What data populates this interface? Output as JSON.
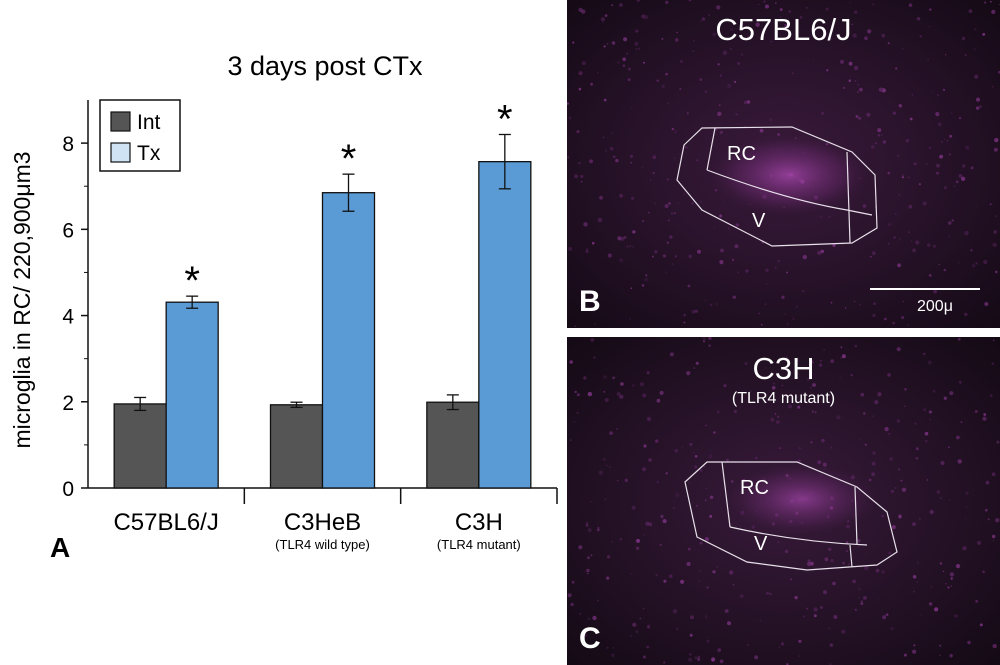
{
  "chart_data": {
    "type": "bar",
    "title": "3 days post CTx",
    "ylabel": "microglia in RC/ 220,900μm3",
    "xlabel": "",
    "ylim": [
      0,
      9
    ],
    "yticks": [
      0,
      2,
      4,
      6,
      8
    ],
    "categories": [
      "C57BL6/J",
      "C3HeB",
      "C3H"
    ],
    "category_sublabels": [
      "",
      "(TLR4 wild type)",
      "(TLR4 mutant)"
    ],
    "series": [
      {
        "name": "Int",
        "color": "#555555",
        "values": [
          1.95,
          1.93,
          1.99
        ],
        "errors": [
          0.15,
          0.06,
          0.17
        ]
      },
      {
        "name": "Tx",
        "color": "#5b9bd5",
        "values": [
          4.31,
          6.85,
          7.57
        ],
        "errors": [
          0.14,
          0.43,
          0.63
        ]
      }
    ],
    "significance_marks": [
      "*",
      "*",
      "*"
    ],
    "legend_position": "top-left",
    "grid": false,
    "panel_label": "A"
  },
  "micrographs": [
    {
      "panel_label": "B",
      "title": "C57BL6/J",
      "subtitle": "",
      "regions": [
        "RC",
        "V"
      ],
      "scale_bar_label": "200μ"
    },
    {
      "panel_label": "C",
      "title": "C3H",
      "subtitle": "(TLR4 mutant)",
      "regions": [
        "RC",
        "V"
      ]
    }
  ]
}
